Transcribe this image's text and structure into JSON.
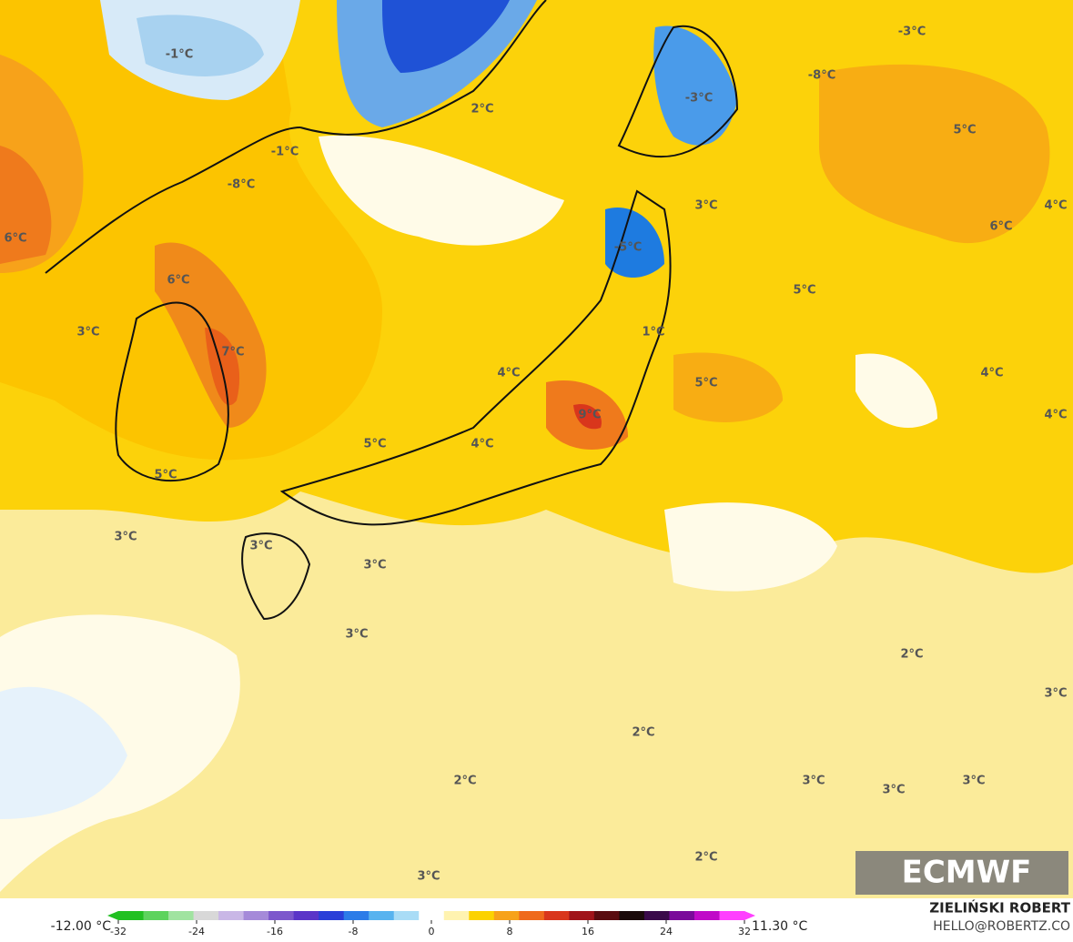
{
  "map_labels": [
    "-1°C",
    "2°C",
    "-3°C",
    "-8°C",
    "-3°C",
    "5°C",
    "-1°C",
    "-8°C",
    "3°C",
    "4°C",
    "6°C",
    "6°C",
    "-5°C",
    "6°C",
    "5°C",
    "3°C",
    "7°C",
    "1°C",
    "4°C",
    "4°C",
    "5°C",
    "4°C",
    "9°C",
    "5°C",
    "4°C",
    "5°C",
    "3°C",
    "3°C",
    "3°C",
    "3°C",
    "2°C",
    "3°C",
    "2°C",
    "2°C",
    "3°C",
    "3°C",
    "3°C",
    "2°C",
    "3°C"
  ],
  "logo": "ECMWF",
  "colorbar": {
    "min_label": "-12.00 °C",
    "max_label": "11.30 °C",
    "range": [
      -32,
      32
    ],
    "ticks": [
      -32,
      -24,
      -16,
      -8,
      0,
      8,
      16,
      24,
      32
    ]
  },
  "credits": {
    "author": "ZIELIŃSKI ROBERT",
    "contact": "HELLO@ROBERTZ.CO"
  }
}
